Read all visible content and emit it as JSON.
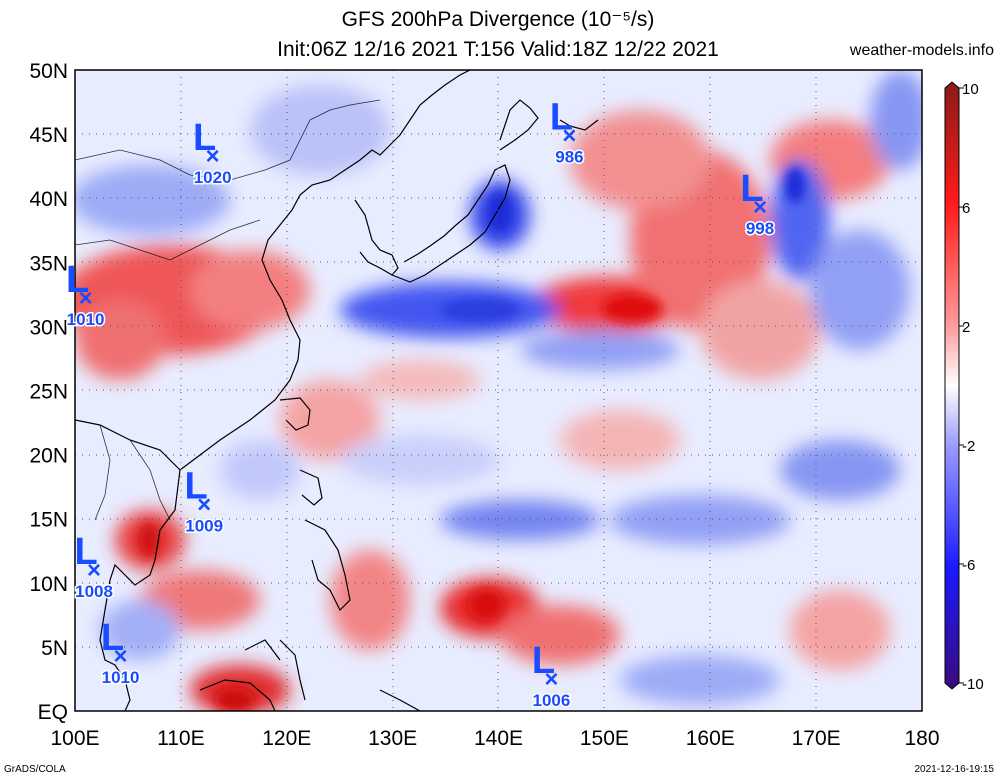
{
  "title_line1": "GFS 200hPa Divergence (10⁻⁵/s)",
  "title_line2": "Init:06Z 12/16 2021 T:156 Valid:18Z 12/22 2021",
  "site": "weather-models.info",
  "credit_left": "GrADS/COLA",
  "credit_right": "2021-12-16-19:15",
  "lon_ticks": [
    "100E",
    "110E",
    "120E",
    "130E",
    "140E",
    "150E",
    "160E",
    "170E",
    "180"
  ],
  "lat_ticks": [
    "50N",
    "45N",
    "40N",
    "35N",
    "30N",
    "25N",
    "20N",
    "15N",
    "10N",
    "5N",
    "EQ"
  ],
  "colorbar": {
    "labels": [
      "10",
      "6",
      "2",
      "-2",
      "-6",
      "-10"
    ],
    "colors": [
      "#ffffff",
      "#1a4cff",
      "#e01010",
      "#a01a1a",
      "#2a0a7a"
    ]
  },
  "lows": [
    {
      "lon": 113,
      "lat": 43.3,
      "pressure": "1020"
    },
    {
      "lon": 146.7,
      "lat": 44.9,
      "pressure": "986"
    },
    {
      "lon": 164.7,
      "lat": 39.3,
      "pressure": "998"
    },
    {
      "lon": 101.0,
      "lat": 32.2,
      "pressure": "1010"
    },
    {
      "lon": 112.2,
      "lat": 16.1,
      "pressure": "1009"
    },
    {
      "lon": 101.8,
      "lat": 11.0,
      "pressure": "1008"
    },
    {
      "lon": 104.3,
      "lat": 4.3,
      "pressure": "1010"
    },
    {
      "lon": 145.0,
      "lat": 2.5,
      "pressure": "1006"
    }
  ]
}
